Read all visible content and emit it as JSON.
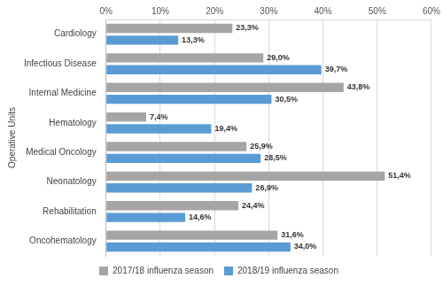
{
  "chart_data": {
    "type": "bar",
    "orientation": "horizontal",
    "y_label": "Operative Units",
    "categories": [
      "Cardiology",
      "Infectious Disease",
      "Internal Medicine",
      "Hematology",
      "Medical Oncology",
      "Neonatology",
      "Rehabilitation",
      "Oncohematology"
    ],
    "series": [
      {
        "name": "2017/18 influenza season",
        "color": "#a5a5a5",
        "values": [
          23.3,
          29.0,
          43.8,
          7.4,
          25.9,
          51.4,
          24.4,
          31.6
        ],
        "value_labels": [
          "23,3%",
          "29,0%",
          "43,8%",
          "7,4%",
          "25,9%",
          "51,4%",
          "24,4%",
          "31,6%"
        ]
      },
      {
        "name": "2018/19 influenza season",
        "color": "#5b9bd5",
        "values": [
          13.3,
          39.7,
          30.5,
          19.4,
          28.5,
          26.9,
          14.6,
          34.0
        ],
        "value_labels": [
          "13,3%",
          "39,7%",
          "30,5%",
          "19,4%",
          "28,5%",
          "26,9%",
          "14,6%",
          "34,0%"
        ]
      }
    ],
    "xlim": [
      0,
      60
    ],
    "xticks": [
      {
        "value": 0,
        "label": "0%"
      },
      {
        "value": 10,
        "label": "10%"
      },
      {
        "value": 20,
        "label": "20%"
      },
      {
        "value": 30,
        "label": "30%"
      },
      {
        "value": 40,
        "label": "40%"
      },
      {
        "value": 50,
        "label": "50%"
      },
      {
        "value": 60,
        "label": "60%"
      }
    ],
    "grid": true,
    "legend": "bottom",
    "data_labels": true
  }
}
